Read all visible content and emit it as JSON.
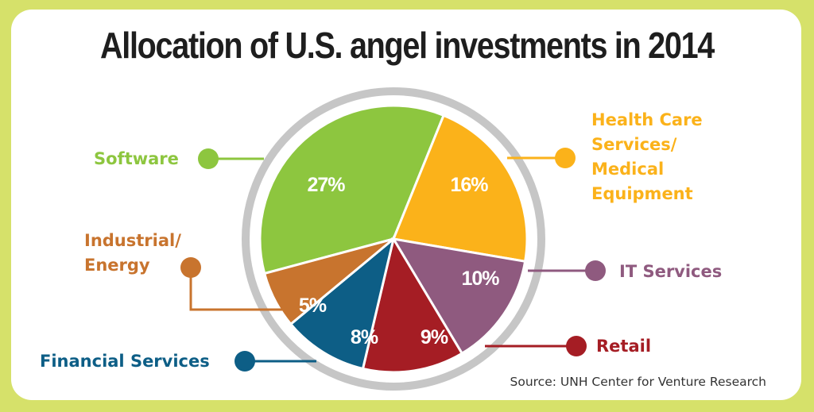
{
  "chart_data": {
    "type": "pie",
    "title": "Allocation of U.S. angel investments in 2014",
    "source": "Source: UNH Center for Venture Research",
    "slices": [
      {
        "label": "Software",
        "display": "27%",
        "value": 27,
        "color": "#8dc63f"
      },
      {
        "label": "Health Care Services/ Medical Equipment",
        "label_lines": [
          "Health Care",
          "Services/",
          "Medical",
          "Equipment"
        ],
        "display": "16%",
        "value": 16,
        "color": "#fbb21a"
      },
      {
        "label": "IT Services",
        "display": "10%",
        "value": 10,
        "color": "#8f5a7f"
      },
      {
        "label": "Retail",
        "display": "9%",
        "value": 9,
        "color": "#a51d24"
      },
      {
        "label": "Financial Services",
        "display": "8%",
        "value": 8,
        "color": "#0d5e86"
      },
      {
        "label": "Industrial/ Energy",
        "label_lines": [
          "Industrial/",
          "Energy"
        ],
        "display": "5%",
        "value": 5,
        "color": "#c8742e"
      }
    ]
  },
  "colors": {
    "background": "#d6e16a",
    "card": "#ffffff",
    "ring": "#c6c6c6"
  }
}
